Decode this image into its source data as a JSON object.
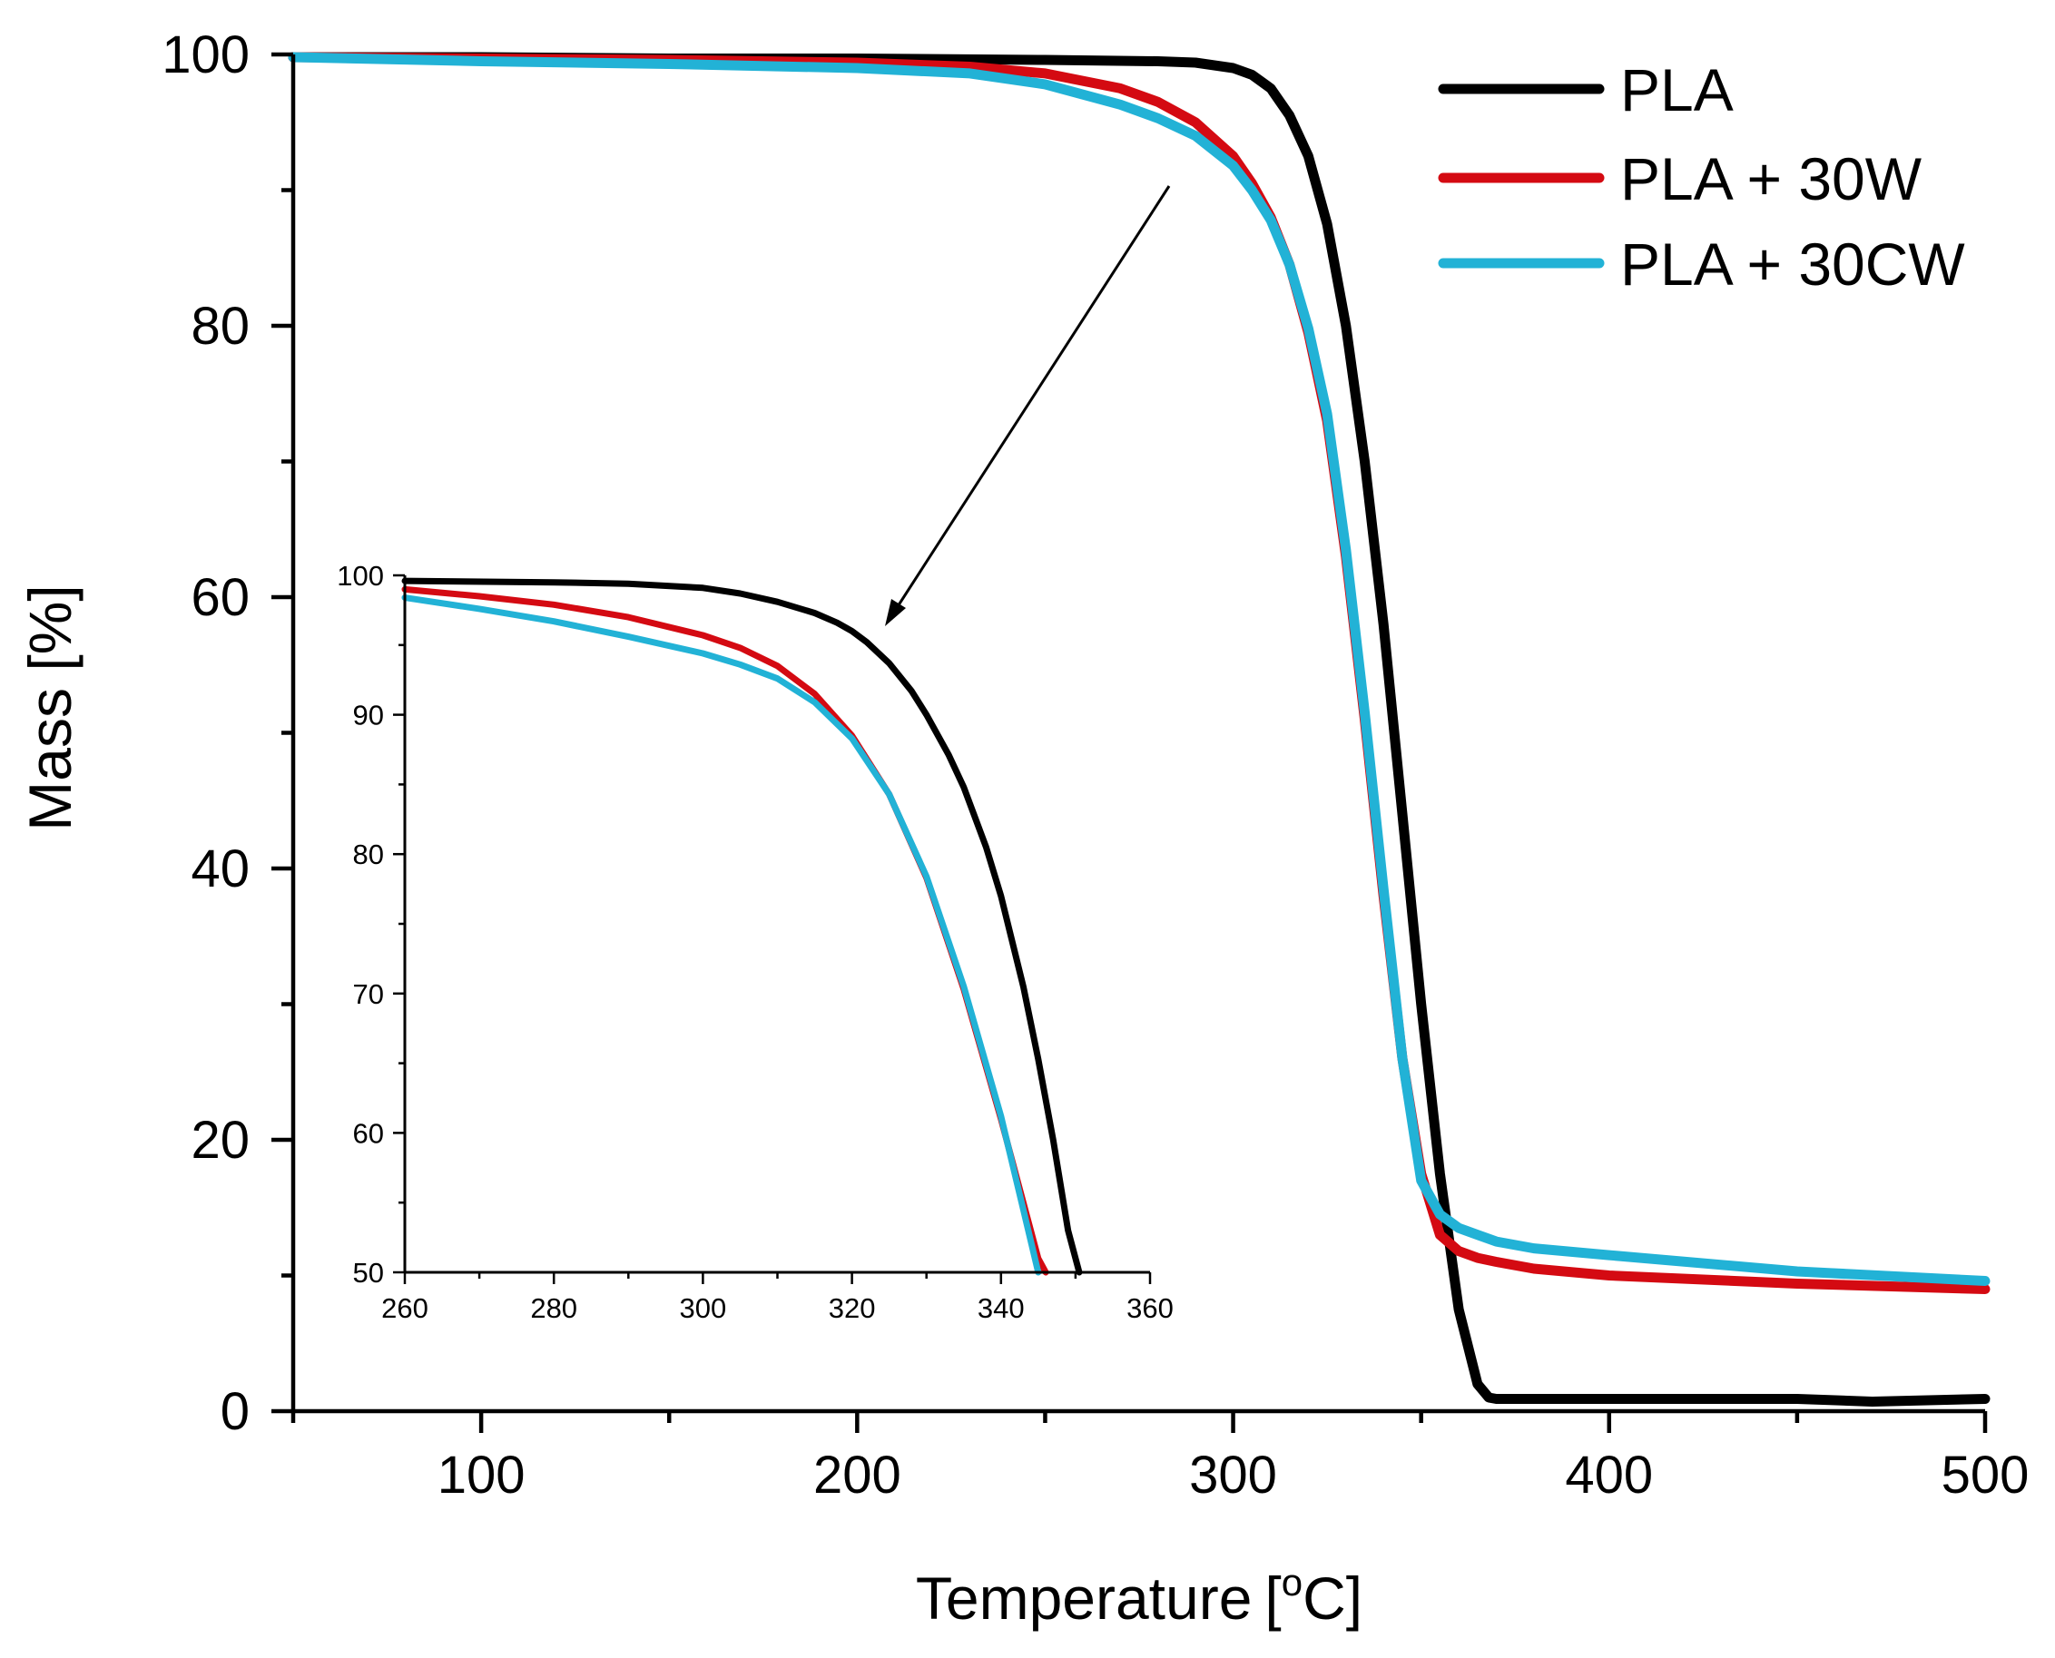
{
  "chart_data": [
    {
      "id": "main",
      "type": "line",
      "title": "",
      "xlabel": "Temperature",
      "xlabel_unit_prefix": "[",
      "xlabel_unit_sup": "o",
      "xlabel_unit_main": "C]",
      "ylabel": "Mass [%]",
      "xlim": [
        50,
        500
      ],
      "ylim": [
        0,
        100
      ],
      "xticks": [
        100,
        200,
        300,
        400,
        500
      ],
      "xtick_labels": [
        "100",
        "200",
        "300",
        "400",
        "500"
      ],
      "yticks": [
        0,
        20,
        40,
        60,
        80,
        100
      ],
      "ytick_labels": [
        "0",
        "20",
        "40",
        "60",
        "80",
        "100"
      ],
      "legend_position": "top-right",
      "series": [
        {
          "name": "PLA",
          "color": "#000000",
          "x": [
            50,
            100,
            150,
            200,
            250,
            280,
            290,
            300,
            305,
            310,
            315,
            320,
            325,
            330,
            335,
            340,
            345,
            350,
            355,
            360,
            365,
            368,
            370,
            380,
            400,
            450,
            470,
            500
          ],
          "y": [
            99.8,
            99.8,
            99.7,
            99.7,
            99.6,
            99.5,
            99.4,
            99.0,
            98.5,
            97.5,
            95.5,
            92.5,
            87.5,
            80.0,
            70.0,
            58.0,
            44.0,
            30.0,
            17.5,
            7.5,
            2.0,
            1.0,
            0.9,
            0.9,
            0.9,
            0.9,
            0.7,
            0.9
          ]
        },
        {
          "name": "PLA + 30W",
          "color": "#d40a12",
          "x": [
            50,
            100,
            150,
            200,
            230,
            250,
            270,
            280,
            290,
            300,
            305,
            310,
            315,
            320,
            325,
            330,
            335,
            340,
            345,
            350,
            355,
            360,
            365,
            370,
            380,
            400,
            450,
            500
          ],
          "y": [
            99.8,
            99.7,
            99.6,
            99.4,
            99.1,
            98.6,
            97.5,
            96.5,
            95.0,
            92.5,
            90.5,
            88.0,
            84.5,
            79.5,
            73.0,
            63.0,
            51.0,
            38.0,
            26.0,
            17.5,
            13.0,
            11.8,
            11.3,
            11.0,
            10.5,
            10.0,
            9.4,
            9.0
          ]
        },
        {
          "name": "PLA + 30CW",
          "color": "#22b2d6",
          "x": [
            50,
            100,
            150,
            200,
            230,
            250,
            270,
            280,
            290,
            300,
            305,
            310,
            315,
            320,
            325,
            330,
            335,
            340,
            345,
            350,
            355,
            360,
            365,
            370,
            380,
            400,
            450,
            500
          ],
          "y": [
            99.8,
            99.5,
            99.3,
            99.0,
            98.6,
            97.8,
            96.3,
            95.3,
            94.0,
            91.8,
            90.0,
            87.8,
            84.5,
            79.8,
            73.5,
            63.5,
            51.5,
            38.5,
            26.0,
            17.0,
            14.5,
            13.5,
            13.0,
            12.5,
            12.0,
            11.5,
            10.3,
            9.6
          ]
        }
      ]
    },
    {
      "id": "inset",
      "type": "line",
      "title": "",
      "xlabel": "",
      "ylabel": "",
      "xlim": [
        260,
        360
      ],
      "ylim": [
        50,
        100
      ],
      "xticks": [
        260,
        280,
        300,
        320,
        340,
        360
      ],
      "xtick_labels": [
        "260",
        "280",
        "300",
        "320",
        "340",
        "360"
      ],
      "yticks": [
        50,
        60,
        70,
        80,
        90,
        100
      ],
      "ytick_labels": [
        "50",
        "60",
        "70",
        "80",
        "90",
        "100"
      ],
      "series": [
        {
          "name": "PLA",
          "color": "#000000",
          "x": [
            260,
            280,
            290,
            300,
            305,
            310,
            315,
            318,
            320,
            322,
            325,
            328,
            330,
            333,
            335,
            338,
            340,
            343,
            345,
            347,
            349,
            350,
            350.5
          ],
          "y": [
            99.6,
            99.5,
            99.4,
            99.1,
            98.7,
            98.1,
            97.3,
            96.6,
            96.0,
            95.2,
            93.7,
            91.7,
            90.0,
            87.1,
            84.8,
            80.5,
            77.0,
            70.5,
            65.3,
            59.5,
            53.0,
            51.0,
            50.0
          ]
        },
        {
          "name": "PLA + 30W",
          "color": "#d40a12",
          "x": [
            260,
            270,
            280,
            290,
            300,
            305,
            310,
            315,
            320,
            325,
            330,
            335,
            340,
            343,
            345,
            346
          ],
          "y": [
            99.0,
            98.5,
            97.9,
            97.0,
            95.7,
            94.8,
            93.5,
            91.5,
            88.5,
            84.3,
            78.3,
            70.3,
            61.0,
            55.0,
            51.0,
            50.0
          ]
        },
        {
          "name": "PLA + 30CW",
          "color": "#22b2d6",
          "x": [
            260,
            270,
            280,
            290,
            300,
            305,
            310,
            315,
            320,
            325,
            330,
            335,
            340,
            343,
            345
          ],
          "y": [
            98.4,
            97.6,
            96.7,
            95.6,
            94.4,
            93.6,
            92.6,
            90.9,
            88.3,
            84.3,
            78.4,
            70.5,
            61.2,
            54.5,
            50.0
          ]
        }
      ]
    }
  ]
}
